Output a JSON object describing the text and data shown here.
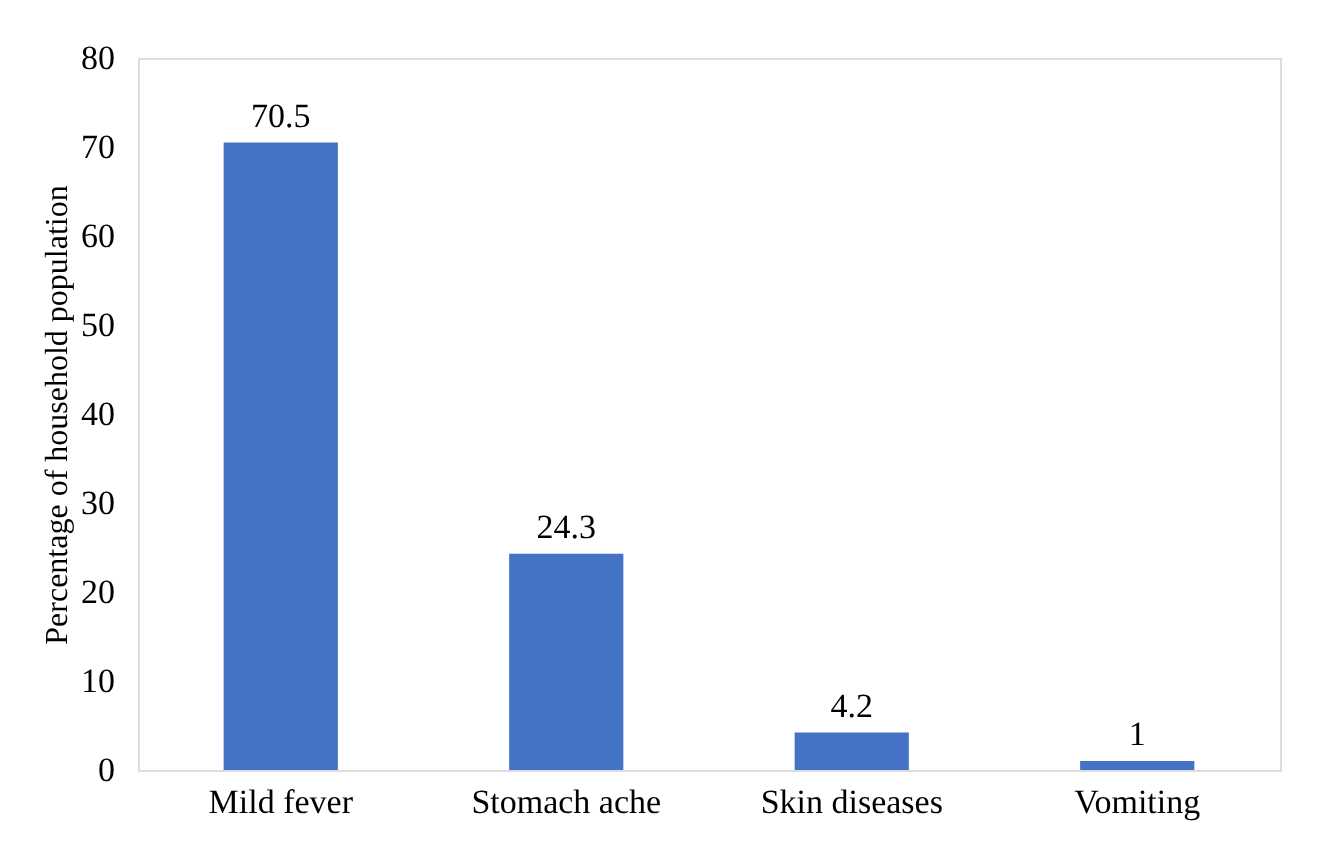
{
  "chart_data": {
    "type": "bar",
    "ylabel": "Percentage of household population",
    "categories": [
      "Mild fever",
      "Stomach ache",
      "Skin diseases",
      "Vomiting"
    ],
    "values": [
      70.5,
      24.3,
      4.2,
      1
    ],
    "color": "#4472c4",
    "ylim": [
      0,
      80
    ],
    "yticks": [
      0,
      10,
      20,
      30,
      40,
      50,
      60,
      70,
      80
    ],
    "grid": false,
    "data_labels": true
  }
}
